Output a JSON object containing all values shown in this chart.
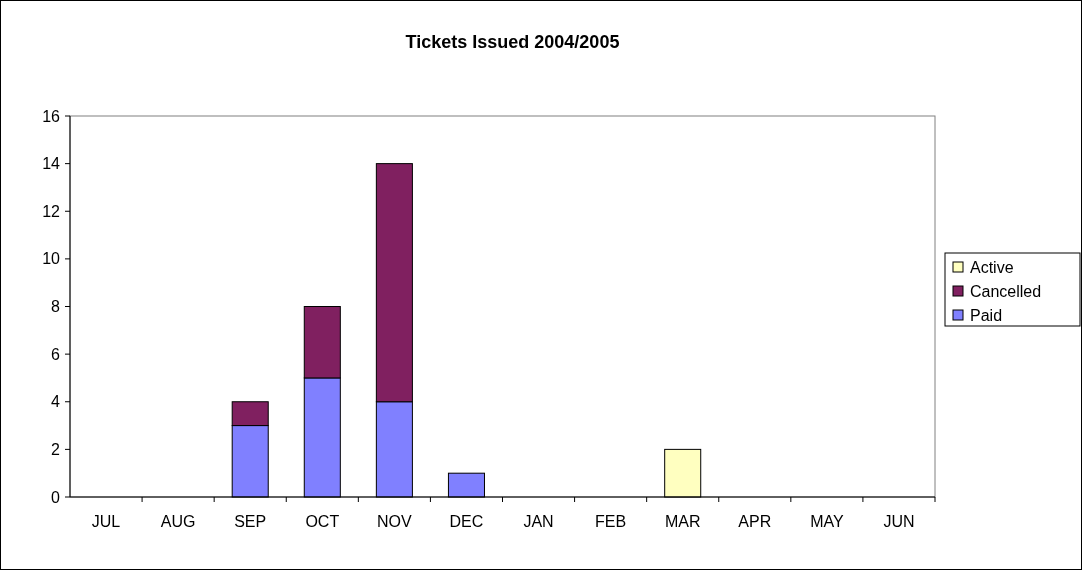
{
  "chart_data": {
    "type": "bar",
    "title": "Tickets Issued 2004/2005",
    "stacked": true,
    "categories": [
      "JUL",
      "AUG",
      "SEP",
      "OCT",
      "NOV",
      "DEC",
      "JAN",
      "FEB",
      "MAR",
      "APR",
      "MAY",
      "JUN"
    ],
    "series": [
      {
        "name": "Paid",
        "color": "#8080ff",
        "values": [
          null,
          null,
          3,
          5,
          4,
          1,
          null,
          null,
          null,
          null,
          null,
          null
        ]
      },
      {
        "name": "Cancelled",
        "color": "#802060",
        "values": [
          null,
          null,
          1,
          3,
          10,
          null,
          null,
          null,
          null,
          null,
          null,
          null
        ]
      },
      {
        "name": "Active",
        "color": "#ffffc0",
        "values": [
          null,
          null,
          null,
          null,
          null,
          null,
          null,
          null,
          2,
          null,
          null,
          null
        ]
      }
    ],
    "ylim": [
      0,
      16
    ],
    "yticks": [
      0,
      2,
      4,
      6,
      8,
      10,
      12,
      14,
      16
    ],
    "grid": false,
    "legend": "right"
  }
}
